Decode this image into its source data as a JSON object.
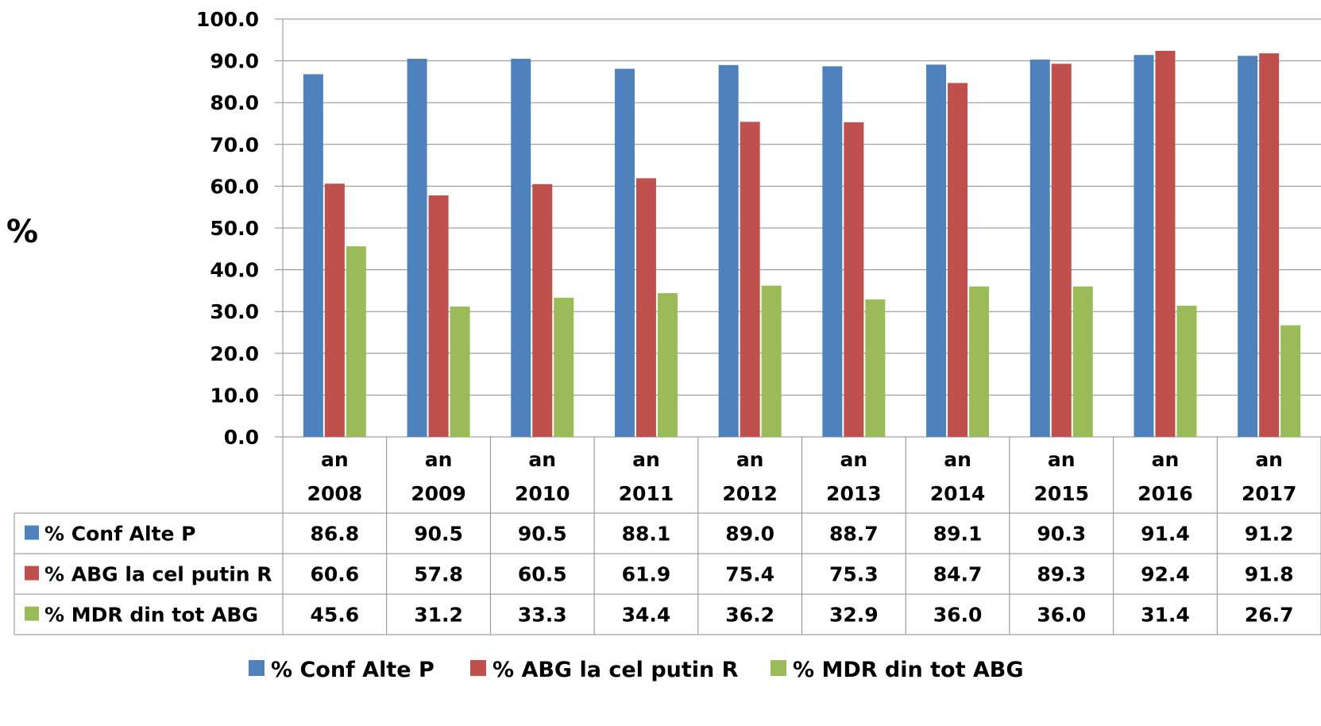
{
  "chart_data": {
    "type": "bar",
    "title": "",
    "xlabel": "",
    "ylabel": "%",
    "ylim": [
      0,
      100
    ],
    "y_ticks": [
      "0.0",
      "10.0",
      "20.0",
      "30.0",
      "40.0",
      "50.0",
      "60.0",
      "70.0",
      "80.0",
      "90.0",
      "100.0"
    ],
    "grid": true,
    "legend_position": "bottom",
    "data_table": true,
    "categories": [
      [
        "an",
        "2008"
      ],
      [
        "an",
        "2009"
      ],
      [
        "an",
        "2010"
      ],
      [
        "an",
        "2011"
      ],
      [
        "an",
        "2012"
      ],
      [
        "an",
        "2013"
      ],
      [
        "an",
        "2014"
      ],
      [
        "an",
        "2015"
      ],
      [
        "an",
        "2016"
      ],
      [
        "an",
        "2017"
      ]
    ],
    "series": [
      {
        "name": "% Conf Alte P",
        "color": "#4F81BD",
        "values": [
          86.8,
          90.5,
          90.5,
          88.1,
          89.0,
          88.7,
          89.1,
          90.3,
          91.4,
          91.2
        ],
        "labels": [
          "86.8",
          "90.5",
          "90.5",
          "88.1",
          "89.0",
          "88.7",
          "89.1",
          "90.3",
          "91.4",
          "91.2"
        ]
      },
      {
        "name": "% ABG la cel putin R",
        "color": "#C0504D",
        "values": [
          60.6,
          57.8,
          60.5,
          61.9,
          75.4,
          75.3,
          84.7,
          89.3,
          92.4,
          91.8
        ],
        "labels": [
          "60.6",
          "57.8",
          "60.5",
          "61.9",
          "75.4",
          "75.3",
          "84.7",
          "89.3",
          "92.4",
          "91.8"
        ]
      },
      {
        "name": "% MDR din tot ABG",
        "color": "#9BBB59",
        "values": [
          45.6,
          31.2,
          33.3,
          34.4,
          36.2,
          32.9,
          36.0,
          36.0,
          31.4,
          26.7
        ],
        "labels": [
          "45.6",
          "31.2",
          "33.3",
          "34.4",
          "36.2",
          "32.9",
          "36.0",
          "36.0",
          "31.4",
          "26.7"
        ]
      }
    ]
  }
}
